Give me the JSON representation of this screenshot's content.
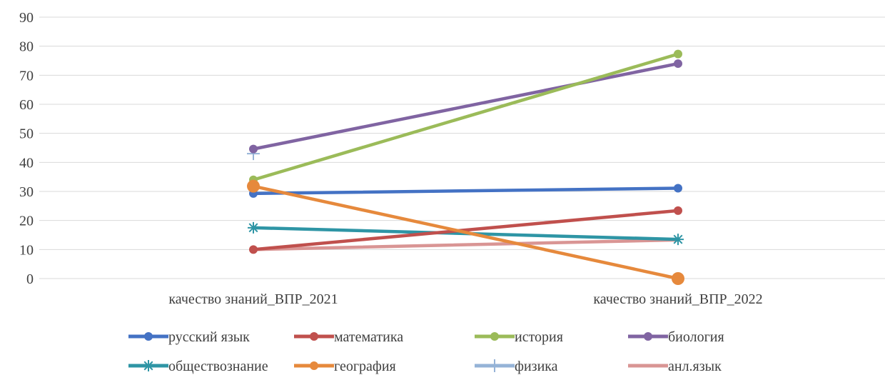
{
  "chart_data": {
    "type": "line",
    "categories": [
      "качество знаний_ВПР_2021",
      "качество знаний_ВПР_2022"
    ],
    "ylim": [
      0,
      90
    ],
    "yticks": [
      "0",
      "10",
      "20",
      "30",
      "40",
      "50",
      "60",
      "70",
      "80",
      "90"
    ],
    "grid": true,
    "legend_position": "bottom",
    "series": [
      {
        "name": "русский язык",
        "values": [
          29.3,
          31.1
        ],
        "color": "#4472C4",
        "marker": "circle"
      },
      {
        "name": "математика",
        "values": [
          10.0,
          23.4
        ],
        "color": "#C0504D",
        "marker": "circle"
      },
      {
        "name": "история",
        "values": [
          34.0,
          77.3
        ],
        "color": "#9BBB59",
        "marker": "circle"
      },
      {
        "name": "биология",
        "values": [
          44.6,
          74.0
        ],
        "color": "#8064A2",
        "marker": "circle"
      },
      {
        "name": "обществознание",
        "values": [
          17.5,
          13.5
        ],
        "color": "#2E95A5",
        "marker": "star"
      },
      {
        "name": "география",
        "values": [
          31.8,
          0.0
        ],
        "color": "#E6893C",
        "marker": "circle"
      },
      {
        "name": "физика",
        "values": [
          43.0,
          null
        ],
        "color": "#95B3D7",
        "marker": "plus"
      },
      {
        "name": "анл.язык",
        "values": [
          10.0,
          13.3
        ],
        "color": "#D99594",
        "marker": "none"
      }
    ]
  }
}
